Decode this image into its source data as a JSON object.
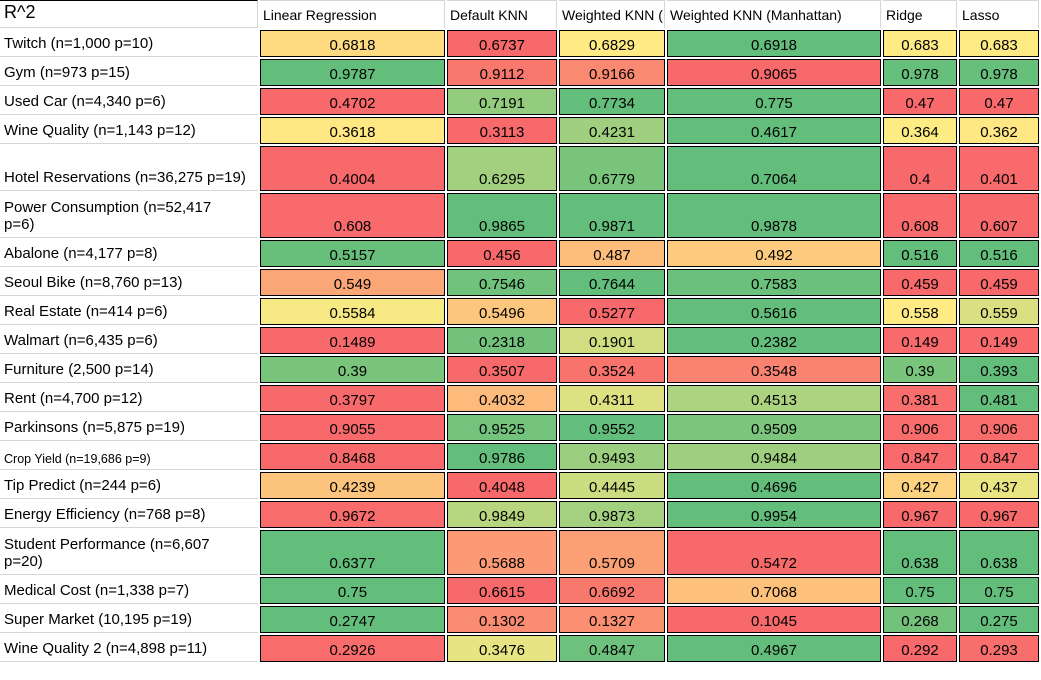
{
  "chart_data": {
    "type": "heatmap",
    "title": "R^2",
    "columns": [
      "Linear Regression",
      "Default KNN",
      "Weighted KNN (",
      "Weighted KNN (Manhattan)",
      "Ridge",
      "Lasso"
    ],
    "rows": [
      {
        "label": "Twitch (n=1,000 p=10)",
        "values": [
          "0.6818",
          "0.6737",
          "0.6829",
          "0.6918",
          "0.683",
          "0.683"
        ]
      },
      {
        "label": "Gym (n=973 p=15)",
        "values": [
          "0.9787",
          "0.9112",
          "0.9166",
          "0.9065",
          "0.978",
          "0.978"
        ]
      },
      {
        "label": "Used Car (n=4,340 p=6)",
        "values": [
          "0.4702",
          "0.7191",
          "0.7734",
          "0.775",
          "0.47",
          "0.47"
        ]
      },
      {
        "label": "Wine Quality (n=1,143 p=12)",
        "values": [
          "0.3618",
          "0.3113",
          "0.4231",
          "0.4617",
          "0.364",
          "0.362"
        ]
      },
      {
        "label": "Hotel Reservations (n=36,275 p=19)",
        "values": [
          "0.4004",
          "0.6295",
          "0.6779",
          "0.7064",
          "0.4",
          "0.401"
        ]
      },
      {
        "label": "Power Consumption (n=52,417\np=6)",
        "values": [
          "0.608",
          "0.9865",
          "0.9871",
          "0.9878",
          "0.608",
          "0.607"
        ]
      },
      {
        "label": "Abalone (n=4,177 p=8)",
        "values": [
          "0.5157",
          "0.456",
          "0.487",
          "0.492",
          "0.516",
          "0.516"
        ]
      },
      {
        "label": "Seoul Bike (n=8,760 p=13)",
        "values": [
          "0.549",
          "0.7546",
          "0.7644",
          "0.7583",
          "0.459",
          "0.459"
        ]
      },
      {
        "label": "Real Estate (n=414 p=6)",
        "values": [
          "0.5584",
          "0.5496",
          "0.5277",
          "0.5616",
          "0.558",
          "0.559"
        ]
      },
      {
        "label": "Walmart (n=6,435 p=6)",
        "values": [
          "0.1489",
          "0.2318",
          "0.1901",
          "0.2382",
          "0.149",
          "0.149"
        ]
      },
      {
        "label": "Furniture (2,500 p=14)",
        "values": [
          "0.39",
          "0.3507",
          "0.3524",
          "0.3548",
          "0.39",
          "0.393"
        ]
      },
      {
        "label": "Rent (n=4,700 p=12)",
        "values": [
          "0.3797",
          "0.4032",
          "0.4311",
          "0.4513",
          "0.381",
          "0.481"
        ]
      },
      {
        "label": "Parkinsons (n=5,875 p=19)",
        "values": [
          "0.9055",
          "0.9525",
          "0.9552",
          "0.9509",
          "0.906",
          "0.906"
        ]
      },
      {
        "label": "Crop Yield (n=19,686 p=9)",
        "values": [
          "0.8468",
          "0.9786",
          "0.9493",
          "0.9484",
          "0.847",
          "0.847"
        ]
      },
      {
        "label": "Tip Predict (n=244 p=6)",
        "values": [
          "0.4239",
          "0.4048",
          "0.4445",
          "0.4696",
          "0.427",
          "0.437"
        ]
      },
      {
        "label": "Energy Efficiency (n=768 p=8)",
        "values": [
          "0.9672",
          "0.9849",
          "0.9873",
          "0.9954",
          "0.967",
          "0.967"
        ]
      },
      {
        "label": "Student Performance (n=6,607\np=20)",
        "values": [
          "0.6377",
          "0.5688",
          "0.5709",
          "0.5472",
          "0.638",
          "0.638"
        ]
      },
      {
        "label": "Medical Cost (n=1,338 p=7)",
        "values": [
          "0.75",
          "0.6615",
          "0.6692",
          "0.7068",
          "0.75",
          "0.75"
        ]
      },
      {
        "label": "Super Market (10,195 p=19)",
        "values": [
          "0.2747",
          "0.1302",
          "0.1327",
          "0.1045",
          "0.268",
          "0.275"
        ]
      },
      {
        "label": "Wine Quality 2 (n=4,898 p=11)",
        "values": [
          "0.2926",
          "0.3476",
          "0.4847",
          "0.4967",
          "0.292",
          "0.293"
        ]
      }
    ],
    "color_scale": {
      "applies": "per-row",
      "min_color": "#F8696B",
      "mid_color": "#FFEB84",
      "max_color": "#63BE7B",
      "midpoint": "50th percentile"
    },
    "legend_position": "none",
    "grid": "on"
  }
}
